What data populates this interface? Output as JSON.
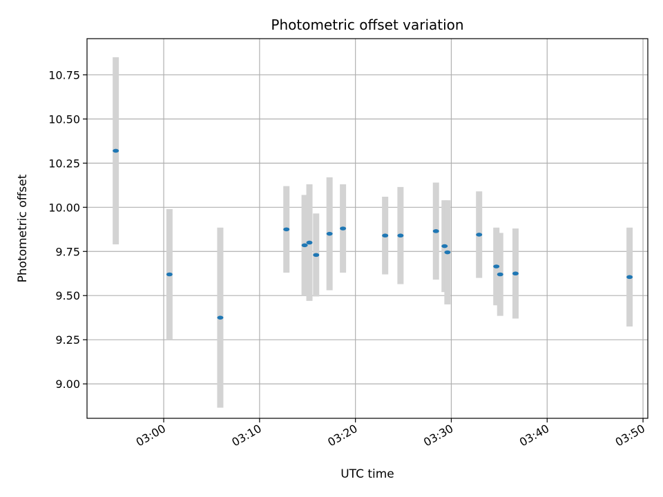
{
  "chart_data": {
    "type": "scatter",
    "title": "Photometric offset variation",
    "xlabel": "UTC time",
    "ylabel": "Photometric offset",
    "grid": true,
    "legend": "none",
    "x_unit": "minutes after 03:00 UTC",
    "xlim": [
      -8,
      50.5
    ],
    "ylim": [
      8.805,
      10.955
    ],
    "x_ticks": [
      {
        "value": 0,
        "label": "03:00"
      },
      {
        "value": 10,
        "label": "03:10"
      },
      {
        "value": 20,
        "label": "03:20"
      },
      {
        "value": 30,
        "label": "03:30"
      },
      {
        "value": 40,
        "label": "03:40"
      },
      {
        "value": 50,
        "label": "03:50"
      }
    ],
    "y_ticks": [
      {
        "value": 9.0,
        "label": "9.00"
      },
      {
        "value": 9.25,
        "label": "9.25"
      },
      {
        "value": 9.5,
        "label": "9.50"
      },
      {
        "value": 9.75,
        "label": "9.75"
      },
      {
        "value": 10.0,
        "label": "10.00"
      },
      {
        "value": 10.25,
        "label": "10.25"
      },
      {
        "value": 10.5,
        "label": "10.50"
      },
      {
        "value": 10.75,
        "label": "10.75"
      }
    ],
    "colors": {
      "marker": "#1f77b4",
      "errorbar": "#d3d3d3",
      "grid": "#b0b0b0"
    },
    "points": [
      {
        "x": -5.0,
        "y": 10.32,
        "err": 0.53
      },
      {
        "x": 0.6,
        "y": 9.62,
        "err": 0.37
      },
      {
        "x": 5.9,
        "y": 9.375,
        "err": 0.51
      },
      {
        "x": 12.8,
        "y": 9.875,
        "err": 0.245
      },
      {
        "x": 14.7,
        "y": 9.785,
        "err": 0.285
      },
      {
        "x": 15.2,
        "y": 9.8,
        "err": 0.33
      },
      {
        "x": 15.9,
        "y": 9.73,
        "err": 0.235
      },
      {
        "x": 17.3,
        "y": 9.85,
        "err": 0.32
      },
      {
        "x": 18.7,
        "y": 9.88,
        "err": 0.25
      },
      {
        "x": 23.1,
        "y": 9.84,
        "err": 0.22
      },
      {
        "x": 24.7,
        "y": 9.84,
        "err": 0.275
      },
      {
        "x": 28.4,
        "y": 9.865,
        "err": 0.275
      },
      {
        "x": 29.3,
        "y": 9.78,
        "err": 0.26
      },
      {
        "x": 29.6,
        "y": 9.745,
        "err": 0.295
      },
      {
        "x": 32.9,
        "y": 9.845,
        "err": 0.245
      },
      {
        "x": 34.7,
        "y": 9.665,
        "err": 0.22
      },
      {
        "x": 35.1,
        "y": 9.62,
        "err": 0.235
      },
      {
        "x": 36.7,
        "y": 9.625,
        "err": 0.255
      },
      {
        "x": 48.6,
        "y": 9.605,
        "err": 0.28
      }
    ]
  }
}
